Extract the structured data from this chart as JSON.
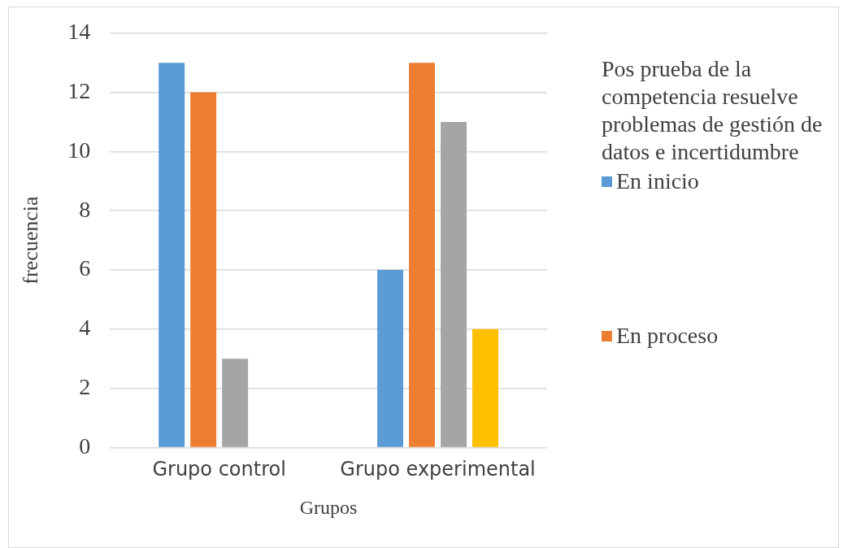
{
  "chart_data": {
    "type": "bar",
    "xlabel": "Grupos",
    "ylabel": "frecuencia",
    "legend_title": "Pos prueba de la competencia resuelve problemas de gestión de datos e incertidumbre",
    "categories": [
      "Grupo control",
      "Grupo experimental"
    ],
    "series": [
      {
        "name": "En inicio",
        "color": "#5b9bd5",
        "values": [
          13,
          6
        ]
      },
      {
        "name": "En proceso",
        "color": "#ed7d31",
        "values": [
          12,
          13
        ]
      },
      {
        "color": "#a5a5a5",
        "values": [
          3,
          11
        ]
      },
      {
        "color": "#ffc000",
        "values": [
          null,
          4
        ]
      }
    ],
    "ylim": [
      0,
      14
    ],
    "yticks": [
      0,
      2,
      4,
      6,
      8,
      10,
      12,
      14
    ],
    "grid": "y",
    "legend": "right"
  }
}
